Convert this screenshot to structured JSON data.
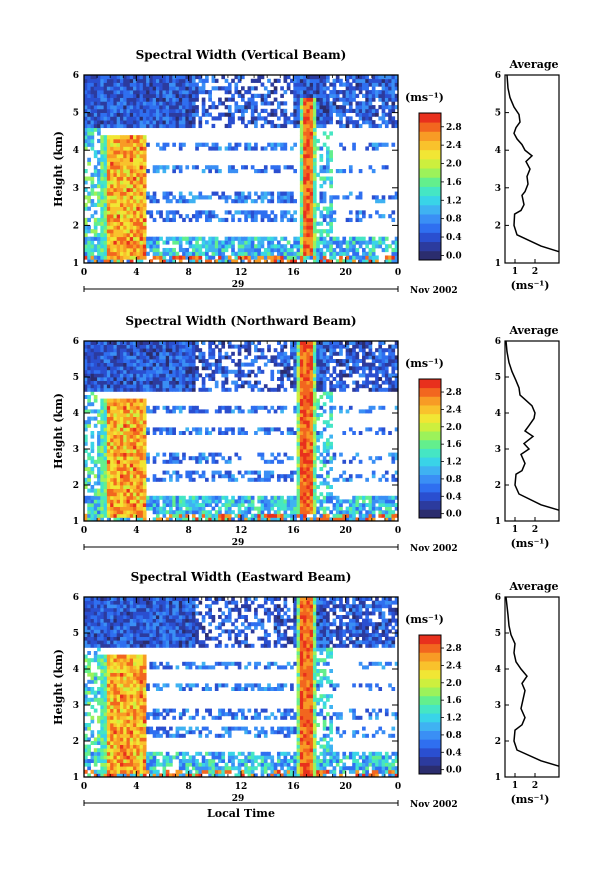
{
  "chart_data": [
    {
      "type": "heatmap",
      "title": "Spectral Width (Vertical Beam)",
      "ylabel": "Height (km)",
      "xlabel": "",
      "xlim": [
        0,
        24
      ],
      "ylim": [
        1,
        6
      ],
      "x_ticks": [
        "0",
        "4",
        "8",
        "12",
        "16",
        "20",
        "0"
      ],
      "y_ticks": [
        "1",
        "2",
        "3",
        "4",
        "5",
        "6"
      ],
      "date_label": "29",
      "date_suffix": "Nov 2002",
      "colorbar": {
        "unit_label": "(ms⁻¹)",
        "ticks": [
          "0.0",
          "0.4",
          "0.8",
          "1.2",
          "1.6",
          "2.0",
          "2.4",
          "2.8"
        ],
        "range": [
          0,
          3.2
        ]
      },
      "profile": {
        "title": "Average",
        "xlabel": "(ms⁻¹)",
        "x_ticks": [
          "1",
          "2"
        ],
        "xlim": [
          0.5,
          3.2
        ],
        "y_ticks": [
          "1",
          "2",
          "3",
          "4",
          "5",
          "6"
        ],
        "values": [
          [
            3.2,
            1.3
          ],
          [
            2.3,
            1.45
          ],
          [
            1.1,
            1.75
          ],
          [
            0.95,
            2.0
          ],
          [
            0.98,
            2.3
          ],
          [
            1.3,
            2.4
          ],
          [
            1.45,
            2.55
          ],
          [
            1.35,
            2.8
          ],
          [
            1.5,
            2.9
          ],
          [
            1.65,
            3.1
          ],
          [
            1.6,
            3.3
          ],
          [
            1.75,
            3.5
          ],
          [
            1.55,
            3.7
          ],
          [
            1.85,
            3.85
          ],
          [
            1.5,
            4.0
          ],
          [
            1.35,
            4.15
          ],
          [
            1.1,
            4.3
          ],
          [
            0.95,
            4.45
          ],
          [
            1.05,
            4.6
          ],
          [
            1.25,
            4.75
          ],
          [
            1.2,
            4.95
          ],
          [
            0.95,
            5.15
          ],
          [
            0.75,
            5.4
          ],
          [
            0.65,
            5.65
          ],
          [
            0.6,
            6.0
          ]
        ]
      },
      "field": {
        "spring_precip": [
          1.3,
          4.8,
          1.15,
          4.35,
          2.4
        ],
        "strong_precip": [
          16.4,
          17.8,
          1.2,
          5.4,
          2.9
        ],
        "upper_band": [
          0.0,
          24.0,
          4.6,
          6.0,
          0.55
        ],
        "lower_band": [
          0.0,
          24.0,
          1.0,
          1.7,
          1.2
        ]
      }
    },
    {
      "type": "heatmap",
      "title": "Spectral Width (Northward Beam)",
      "ylabel": "Height (km)",
      "xlabel": "",
      "xlim": [
        0,
        24
      ],
      "ylim": [
        1,
        6
      ],
      "x_ticks": [
        "0",
        "4",
        "8",
        "12",
        "16",
        "20",
        "0"
      ],
      "y_ticks": [
        "1",
        "2",
        "3",
        "4",
        "5",
        "6"
      ],
      "date_label": "29",
      "date_suffix": "Nov 2002",
      "colorbar": {
        "unit_label": "(ms⁻¹)",
        "ticks": [
          "0.0",
          "0.4",
          "0.8",
          "1.2",
          "1.6",
          "2.0",
          "2.4",
          "2.8"
        ],
        "range": [
          0,
          3.2
        ]
      },
      "profile": {
        "title": "Average",
        "xlabel": "(ms⁻¹)",
        "x_ticks": [
          "1",
          "2"
        ],
        "xlim": [
          0.5,
          3.2
        ],
        "y_ticks": [
          "1",
          "2",
          "3",
          "4",
          "5",
          "6"
        ],
        "values": [
          [
            3.2,
            1.3
          ],
          [
            2.3,
            1.45
          ],
          [
            1.2,
            1.75
          ],
          [
            1.0,
            2.0
          ],
          [
            1.05,
            2.3
          ],
          [
            1.35,
            2.4
          ],
          [
            1.5,
            2.6
          ],
          [
            1.3,
            2.85
          ],
          [
            1.7,
            3.0
          ],
          [
            1.45,
            3.15
          ],
          [
            1.9,
            3.35
          ],
          [
            1.5,
            3.5
          ],
          [
            1.7,
            3.65
          ],
          [
            1.95,
            3.85
          ],
          [
            2.0,
            4.0
          ],
          [
            1.85,
            4.2
          ],
          [
            1.45,
            4.4
          ],
          [
            1.25,
            4.5
          ],
          [
            1.2,
            4.7
          ],
          [
            1.05,
            4.9
          ],
          [
            0.85,
            5.15
          ],
          [
            0.7,
            5.4
          ],
          [
            0.6,
            5.7
          ],
          [
            0.55,
            6.0
          ]
        ]
      },
      "field": {
        "spring_precip": [
          1.3,
          4.8,
          1.15,
          4.35,
          2.4
        ],
        "strong_precip": [
          16.2,
          17.8,
          1.2,
          6.0,
          2.9
        ],
        "upper_band": [
          0.0,
          24.0,
          4.6,
          6.0,
          0.55
        ],
        "lower_band": [
          0.0,
          24.0,
          1.0,
          1.7,
          1.2
        ]
      }
    },
    {
      "type": "heatmap",
      "title": "Spectral Width (Eastward Beam)",
      "ylabel": "Height (km)",
      "xlabel": "Local Time",
      "xlim": [
        0,
        24
      ],
      "ylim": [
        1,
        6
      ],
      "x_ticks": [
        "0",
        "4",
        "8",
        "12",
        "16",
        "20",
        "0"
      ],
      "y_ticks": [
        "1",
        "2",
        "3",
        "4",
        "5",
        "6"
      ],
      "date_label": "29",
      "date_suffix": "Nov 2002",
      "colorbar": {
        "unit_label": "(ms⁻¹)",
        "ticks": [
          "0.0",
          "0.4",
          "0.8",
          "1.2",
          "1.6",
          "2.0",
          "2.4",
          "2.8"
        ],
        "range": [
          0,
          3.2
        ]
      },
      "profile": {
        "title": "Average",
        "xlabel": "(ms⁻¹)",
        "x_ticks": [
          "1",
          "2"
        ],
        "xlim": [
          0.5,
          3.2
        ],
        "y_ticks": [
          "1",
          "2",
          "3",
          "4",
          "5",
          "6"
        ],
        "values": [
          [
            3.2,
            1.3
          ],
          [
            2.3,
            1.45
          ],
          [
            1.1,
            1.75
          ],
          [
            0.95,
            2.0
          ],
          [
            1.0,
            2.3
          ],
          [
            1.35,
            2.45
          ],
          [
            1.5,
            2.65
          ],
          [
            1.3,
            2.9
          ],
          [
            1.4,
            3.15
          ],
          [
            1.5,
            3.4
          ],
          [
            1.35,
            3.6
          ],
          [
            1.6,
            3.8
          ],
          [
            1.3,
            4.0
          ],
          [
            1.05,
            4.2
          ],
          [
            0.95,
            4.45
          ],
          [
            1.0,
            4.7
          ],
          [
            0.8,
            4.95
          ],
          [
            0.7,
            5.2
          ],
          [
            0.65,
            5.5
          ],
          [
            0.55,
            6.0
          ]
        ]
      },
      "field": {
        "spring_precip": [
          1.3,
          4.8,
          1.15,
          4.35,
          2.4
        ],
        "strong_precip": [
          16.2,
          17.8,
          1.0,
          6.0,
          2.9
        ],
        "upper_band": [
          0.0,
          24.0,
          4.6,
          6.0,
          0.55
        ],
        "lower_band": [
          0.0,
          24.0,
          1.0,
          1.7,
          1.2
        ]
      }
    }
  ],
  "colors": {
    "palette": [
      "#2b2d6e",
      "#2c3b9e",
      "#2a4fd0",
      "#2f6ff0",
      "#3a8ff5",
      "#3fb2f2",
      "#39d4e8",
      "#45e6c4",
      "#63ef8d",
      "#9cf25a",
      "#cdef3e",
      "#f1e634",
      "#f9c22c",
      "#f89b25",
      "#f2661f",
      "#e8301d"
    ],
    "line": "#000000"
  }
}
